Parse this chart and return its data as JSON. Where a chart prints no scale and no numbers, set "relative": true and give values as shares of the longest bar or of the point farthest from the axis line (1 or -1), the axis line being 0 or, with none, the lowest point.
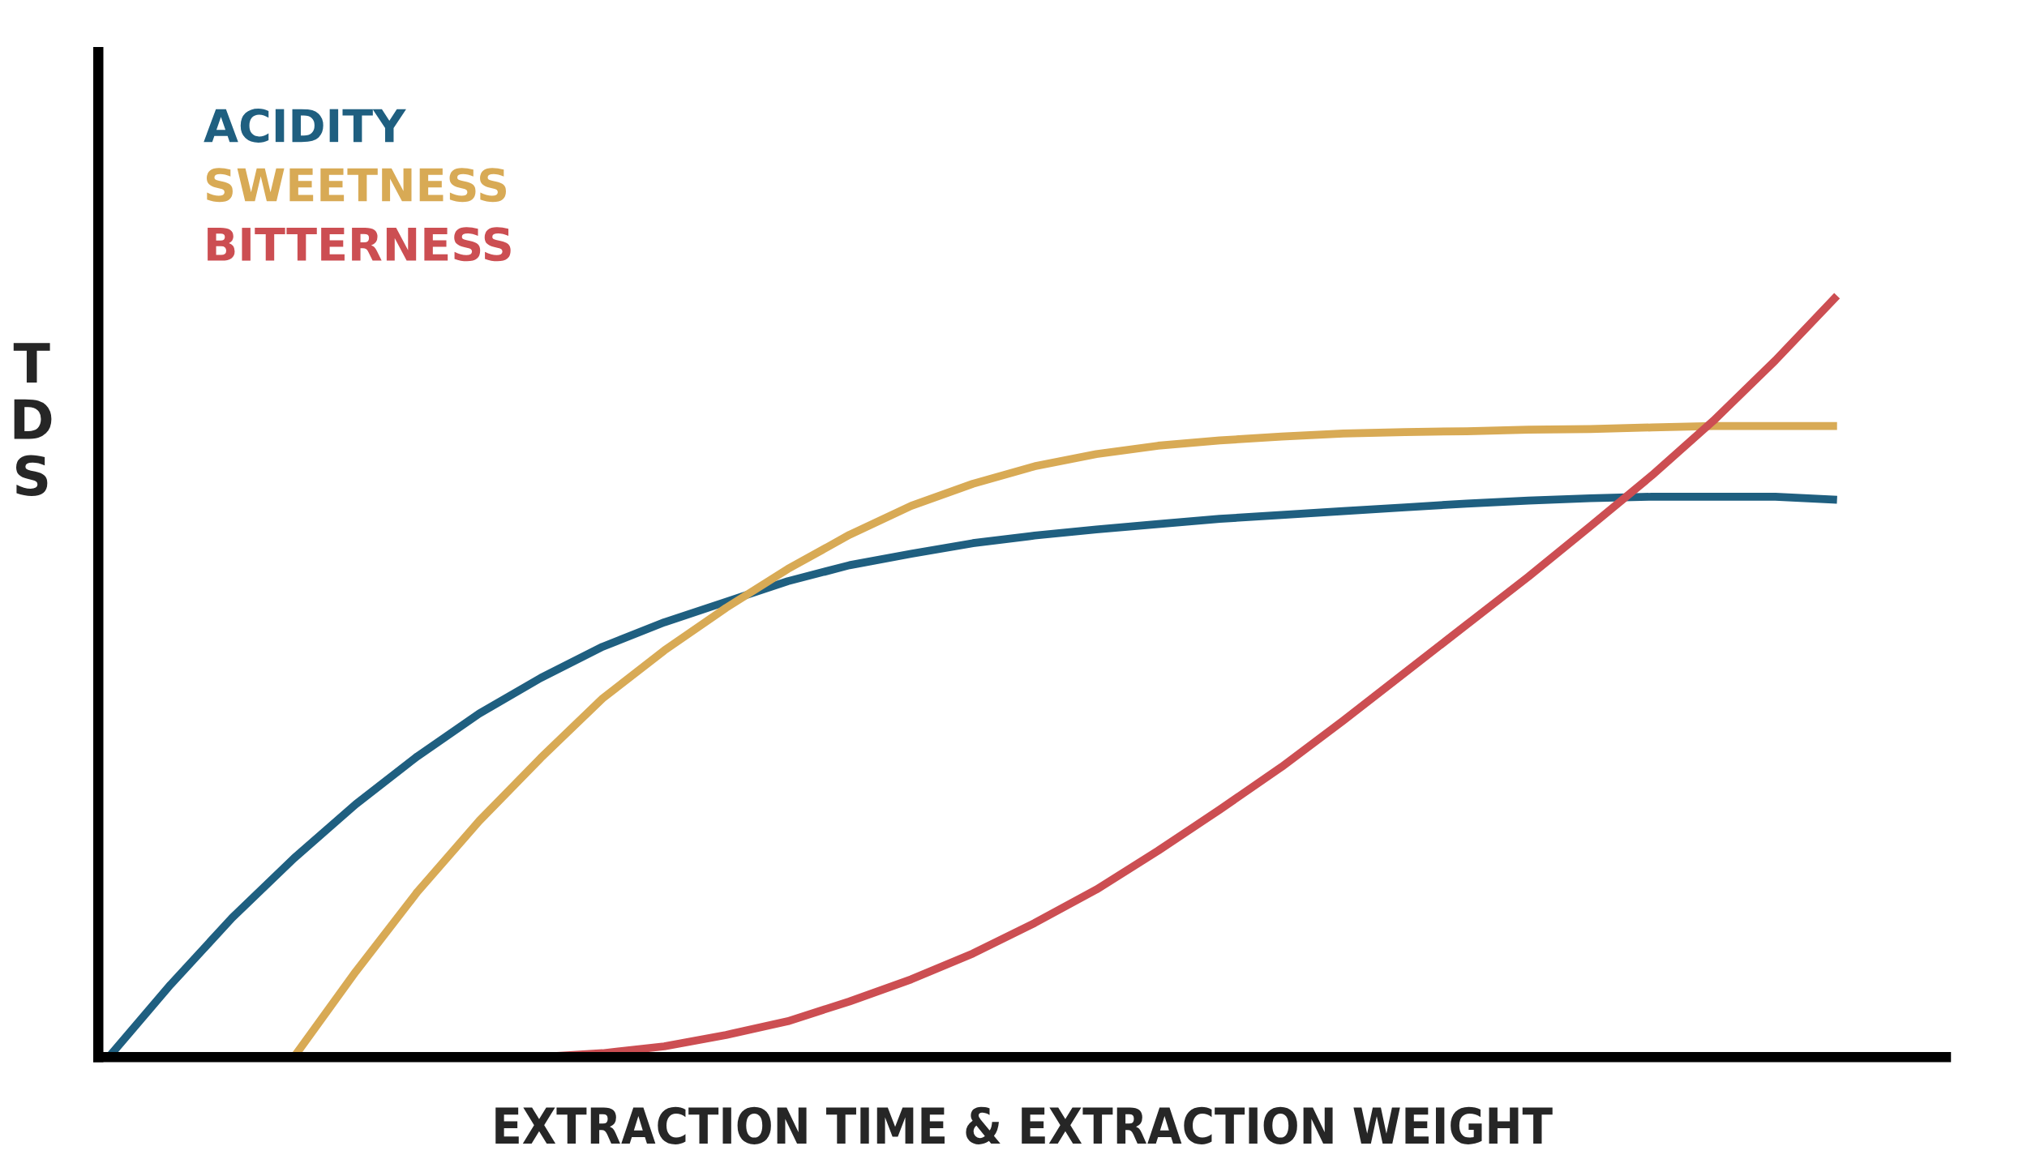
{
  "chart_data": {
    "type": "line",
    "relative": true,
    "xlabel": "EXTRACTION TIME & EXTRACTION WEIGHT",
    "ylabel": "TDS",
    "legend": "top left",
    "grid": false,
    "marker": "none",
    "line_style": "solid",
    "categories": [
      null,
      null,
      null,
      null,
      null,
      null,
      null,
      null,
      null,
      null,
      null,
      null,
      null,
      null,
      null,
      null,
      null,
      null,
      null,
      null,
      null,
      null,
      null,
      null,
      null,
      null,
      null,
      null,
      null
    ],
    "series": [
      {
        "name": "ACIDITY",
        "color": "#1f5f80",
        "values": [
          0,
          0.095,
          0.183,
          0.261,
          0.332,
          0.395,
          0.451,
          0.498,
          0.539,
          0.571,
          0.598,
          0.625,
          0.646,
          0.661,
          0.675,
          0.685,
          0.693,
          0.7,
          0.707,
          0.712,
          0.717,
          0.722,
          0.727,
          0.731,
          0.734,
          0.736,
          0.736,
          0.736,
          0.732
        ]
      },
      {
        "name": "SWEETNESS",
        "color": "#d8aa55",
        "values": [
          null,
          null,
          null,
          0,
          0.112,
          0.217,
          0.31,
          0.393,
          0.471,
          0.534,
          0.59,
          0.641,
          0.686,
          0.724,
          0.753,
          0.776,
          0.792,
          0.803,
          0.81,
          0.815,
          0.819,
          0.821,
          0.822,
          0.824,
          0.825,
          0.827,
          0.829,
          0.829,
          0.829
        ]
      },
      {
        "name": "BITTERNESS",
        "color": "#cc4e52",
        "values": [
          null,
          null,
          null,
          null,
          null,
          null,
          null,
          0,
          0.005,
          0.014,
          0.029,
          0.047,
          0.073,
          0.102,
          0.136,
          0.176,
          0.22,
          0.271,
          0.325,
          0.381,
          0.442,
          0.505,
          0.568,
          0.631,
          0.697,
          0.764,
          0.836,
          0.915,
          1
        ]
      }
    ]
  }
}
